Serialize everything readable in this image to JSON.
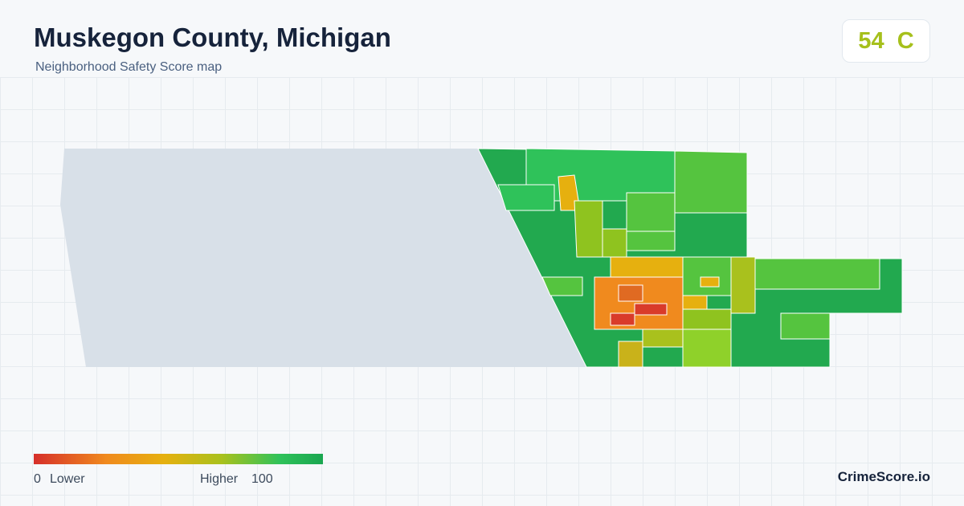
{
  "header": {
    "title": "Muskegon County, Michigan",
    "subtitle": "Neighborhood Safety Score map"
  },
  "score": {
    "value": 54,
    "grade": "C"
  },
  "legend": {
    "min": 0,
    "min_label": "Lower",
    "max_label": "Higher",
    "max": 100
  },
  "brand": "CrimeScore.io"
}
